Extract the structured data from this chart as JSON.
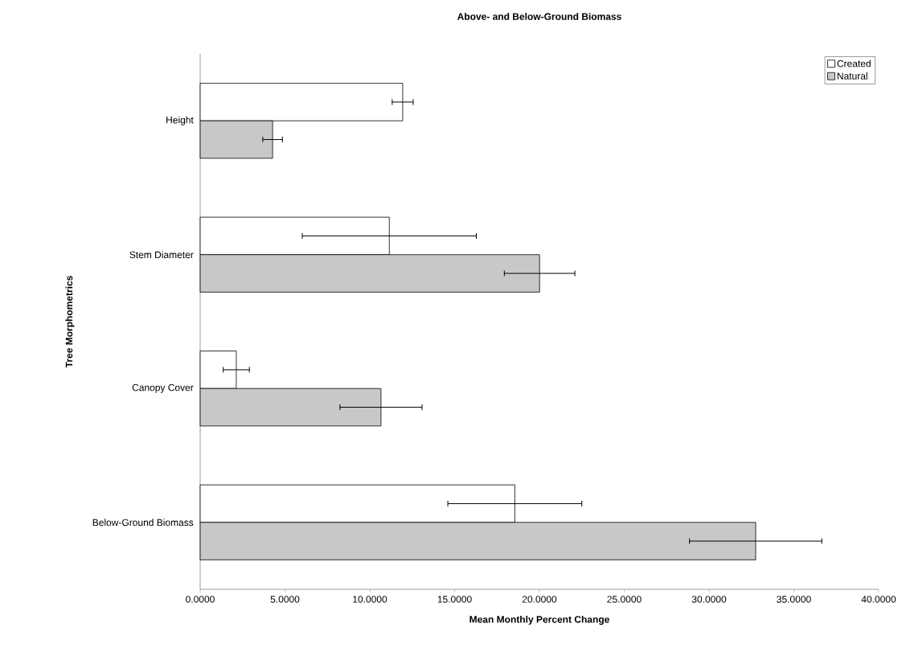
{
  "chart_data": {
    "type": "bar",
    "orientation": "horizontal",
    "title": "Above- and Below-Ground Biomass",
    "xlabel": "Mean Monthly Percent Change",
    "ylabel": "Tree Morphometrics",
    "categories": [
      "Height",
      "Stem Diameter",
      "Canopy Cover",
      "Below-Ground Biomass"
    ],
    "series": [
      {
        "name": "Created",
        "color": "#ffffff",
        "values": [
          11.94,
          11.15,
          2.13,
          18.55
        ],
        "errors": [
          0.62,
          5.13,
          0.77,
          3.95
        ]
      },
      {
        "name": "Natural",
        "color": "#c8c8c8",
        "values": [
          4.27,
          20.01,
          10.66,
          32.75
        ],
        "errors": [
          0.58,
          2.08,
          2.42,
          3.9
        ]
      }
    ],
    "xlim": [
      0,
      40
    ],
    "xticks": [
      {
        "value": 0,
        "label": "0.0000"
      },
      {
        "value": 5,
        "label": "5.0000"
      },
      {
        "value": 10,
        "label": "10.0000"
      },
      {
        "value": 15,
        "label": "15.0000"
      },
      {
        "value": 20,
        "label": "20.0000"
      },
      {
        "value": 25,
        "label": "25.0000"
      },
      {
        "value": 30,
        "label": "30.0000"
      },
      {
        "value": 35,
        "label": "35.0000"
      },
      {
        "value": 40,
        "label": "40.0000"
      }
    ],
    "legend": "top right"
  }
}
